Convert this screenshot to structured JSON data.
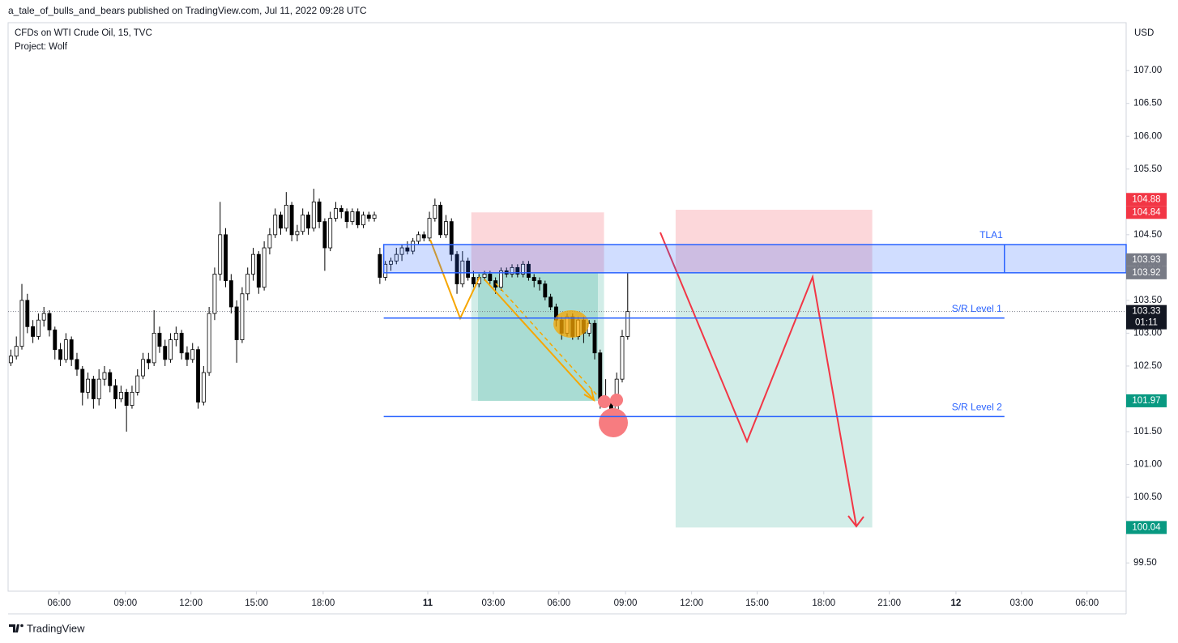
{
  "header": {
    "attribution": "a_tale_of_bulls_and_bears published on TradingView.com, Jul 11, 2022 09:28 UTC",
    "symbol": "CFDs on WTI Crude Oil, 15, TVC",
    "project": "Project: Wolf"
  },
  "footer": {
    "brand": "TradingView"
  },
  "chart_data": {
    "type": "candlestick",
    "currency": "USD",
    "up_color": "#ffffff",
    "down_color": "#000000",
    "ohlc": [
      [
        102.55,
        102.75,
        102.5,
        102.65
      ],
      [
        102.65,
        102.95,
        102.6,
        102.8
      ],
      [
        102.8,
        103.75,
        102.75,
        103.5
      ],
      [
        103.5,
        103.6,
        103.0,
        103.1
      ],
      [
        103.1,
        103.2,
        102.85,
        102.95
      ],
      [
        102.95,
        103.3,
        102.9,
        103.2
      ],
      [
        103.2,
        103.4,
        103.1,
        103.3
      ],
      [
        103.3,
        103.35,
        102.95,
        103.05
      ],
      [
        103.05,
        103.1,
        102.6,
        102.75
      ],
      [
        102.75,
        102.85,
        102.5,
        102.6
      ],
      [
        102.6,
        103.0,
        102.55,
        102.9
      ],
      [
        102.9,
        102.95,
        102.5,
        102.6
      ],
      [
        102.6,
        102.7,
        102.35,
        102.45
      ],
      [
        102.45,
        102.5,
        101.9,
        102.1
      ],
      [
        102.1,
        102.4,
        102.0,
        102.3
      ],
      [
        102.3,
        102.35,
        101.85,
        102.0
      ],
      [
        102.0,
        102.45,
        101.9,
        102.3
      ],
      [
        102.3,
        102.5,
        102.2,
        102.4
      ],
      [
        102.4,
        102.45,
        102.1,
        102.2
      ],
      [
        102.2,
        102.3,
        101.85,
        102.0
      ],
      [
        102.0,
        102.2,
        101.95,
        102.1
      ],
      [
        102.1,
        102.15,
        101.5,
        101.9
      ],
      [
        101.9,
        102.2,
        101.85,
        102.1
      ],
      [
        102.1,
        102.45,
        102.05,
        102.35
      ],
      [
        102.35,
        102.7,
        102.3,
        102.6
      ],
      [
        102.6,
        102.7,
        102.45,
        102.55
      ],
      [
        102.55,
        103.35,
        102.5,
        103.0
      ],
      [
        103.0,
        103.1,
        102.7,
        102.8
      ],
      [
        102.8,
        102.9,
        102.5,
        102.6
      ],
      [
        102.6,
        103.0,
        102.55,
        102.9
      ],
      [
        102.9,
        103.1,
        102.8,
        103.0
      ],
      [
        103.0,
        103.05,
        102.6,
        102.7
      ],
      [
        102.7,
        102.8,
        102.5,
        102.6
      ],
      [
        102.6,
        102.85,
        102.55,
        102.75
      ],
      [
        102.75,
        102.8,
        101.85,
        101.95
      ],
      [
        101.95,
        102.5,
        101.9,
        102.4
      ],
      [
        102.4,
        103.4,
        102.35,
        103.3
      ],
      [
        103.3,
        104.0,
        103.2,
        103.9
      ],
      [
        103.9,
        105.0,
        103.8,
        104.5
      ],
      [
        104.5,
        104.6,
        103.7,
        103.8
      ],
      [
        103.8,
        103.9,
        103.3,
        103.4
      ],
      [
        103.4,
        103.5,
        102.55,
        102.9
      ],
      [
        102.9,
        103.7,
        102.85,
        103.6
      ],
      [
        103.6,
        104.0,
        103.5,
        103.9
      ],
      [
        103.9,
        104.3,
        103.8,
        104.2
      ],
      [
        104.2,
        104.25,
        103.6,
        103.7
      ],
      [
        103.7,
        104.4,
        103.65,
        104.3
      ],
      [
        104.3,
        104.6,
        104.2,
        104.5
      ],
      [
        104.5,
        104.9,
        104.45,
        104.8
      ],
      [
        104.8,
        104.85,
        104.5,
        104.6
      ],
      [
        104.6,
        105.15,
        104.55,
        104.95
      ],
      [
        104.95,
        105.0,
        104.4,
        104.5
      ],
      [
        104.5,
        104.65,
        104.4,
        104.55
      ],
      [
        104.55,
        104.9,
        104.5,
        104.8
      ],
      [
        104.8,
        104.85,
        104.5,
        104.6
      ],
      [
        104.6,
        105.2,
        104.55,
        105.0
      ],
      [
        105.0,
        105.05,
        104.6,
        104.7
      ],
      [
        104.7,
        104.75,
        103.95,
        104.3
      ],
      [
        104.3,
        104.85,
        104.25,
        104.75
      ],
      [
        104.75,
        105.0,
        104.7,
        104.9
      ],
      [
        104.9,
        104.95,
        104.75,
        104.85
      ],
      [
        104.85,
        104.9,
        104.6,
        104.7
      ],
      [
        104.7,
        104.9,
        104.65,
        104.85
      ],
      [
        104.85,
        104.9,
        104.6,
        104.65
      ],
      [
        104.65,
        104.85,
        104.6,
        104.8
      ],
      [
        104.8,
        104.85,
        104.7,
        104.75
      ],
      [
        104.75,
        104.85,
        104.7,
        104.8
      ],
      [
        104.2,
        104.3,
        103.75,
        103.85
      ],
      [
        103.85,
        104.1,
        103.8,
        104.05
      ],
      [
        104.05,
        104.15,
        103.95,
        104.1
      ],
      [
        104.1,
        104.3,
        104.05,
        104.2
      ],
      [
        104.2,
        104.35,
        104.1,
        104.3
      ],
      [
        104.3,
        104.4,
        104.2,
        104.25
      ],
      [
        104.25,
        104.45,
        104.2,
        104.4
      ],
      [
        104.4,
        104.55,
        104.35,
        104.5
      ],
      [
        104.5,
        104.55,
        104.4,
        104.45
      ],
      [
        104.45,
        104.85,
        104.4,
        104.75
      ],
      [
        104.75,
        105.05,
        104.7,
        104.95
      ],
      [
        104.95,
        105.0,
        104.45,
        104.5
      ],
      [
        104.5,
        104.8,
        104.45,
        104.7
      ],
      [
        104.7,
        104.75,
        104.1,
        104.2
      ],
      [
        104.2,
        104.25,
        103.6,
        103.75
      ],
      [
        103.75,
        104.25,
        103.7,
        104.1
      ],
      [
        104.1,
        104.15,
        103.8,
        103.85
      ],
      [
        103.85,
        103.95,
        103.7,
        103.75
      ],
      [
        103.75,
        103.9,
        103.7,
        103.85
      ],
      [
        103.85,
        103.95,
        103.8,
        103.9
      ],
      [
        103.9,
        103.95,
        103.75,
        103.8
      ],
      [
        103.8,
        103.85,
        103.6,
        103.7
      ],
      [
        103.7,
        104.0,
        103.65,
        103.95
      ],
      [
        103.95,
        104.0,
        103.85,
        103.9
      ],
      [
        103.9,
        104.05,
        103.85,
        104.0
      ],
      [
        104.0,
        104.05,
        103.85,
        103.9
      ],
      [
        103.9,
        104.1,
        103.85,
        104.05
      ],
      [
        104.05,
        104.1,
        103.8,
        103.85
      ],
      [
        103.85,
        103.9,
        103.7,
        103.8
      ],
      [
        103.8,
        103.85,
        103.65,
        103.75
      ],
      [
        103.75,
        103.8,
        103.5,
        103.55
      ],
      [
        103.55,
        103.6,
        103.35,
        103.4
      ],
      [
        103.4,
        103.45,
        103.1,
        103.2
      ],
      [
        103.2,
        103.25,
        102.9,
        103.0
      ],
      [
        103.0,
        103.3,
        102.95,
        103.25
      ],
      [
        103.25,
        103.3,
        102.9,
        102.95
      ],
      [
        102.95,
        103.25,
        102.9,
        103.2
      ],
      [
        103.2,
        103.25,
        102.85,
        103.0
      ],
      [
        103.0,
        103.2,
        102.95,
        103.15
      ],
      [
        103.15,
        103.2,
        102.6,
        102.7
      ],
      [
        102.7,
        102.75,
        101.85,
        102.0
      ],
      [
        102.0,
        102.3,
        101.9,
        101.95
      ],
      [
        101.95,
        102.0,
        101.65,
        101.75
      ],
      [
        101.75,
        102.4,
        101.7,
        102.3
      ],
      [
        102.3,
        103.05,
        102.25,
        102.95
      ],
      [
        102.95,
        103.92,
        102.9,
        103.33
      ]
    ],
    "xlim": [
      0,
      203
    ],
    "xticks": [
      {
        "value": 9.26,
        "label": "06:00"
      },
      {
        "value": 21.3,
        "label": "09:00"
      },
      {
        "value": 33.2,
        "label": "12:00"
      },
      {
        "value": 45.1,
        "label": "15:00"
      },
      {
        "value": 57.2,
        "label": "18:00"
      },
      {
        "value": 76.2,
        "label": "11"
      },
      {
        "value": 88.1,
        "label": "03:00"
      },
      {
        "value": 100,
        "label": "06:00"
      },
      {
        "value": 112.1,
        "label": "09:00"
      },
      {
        "value": 124.1,
        "label": "12:00"
      },
      {
        "value": 136,
        "label": "15:00"
      },
      {
        "value": 148.1,
        "label": "18:00"
      },
      {
        "value": 160,
        "label": "21:00"
      },
      {
        "value": 172.1,
        "label": "12"
      },
      {
        "value": 184,
        "label": "03:00"
      },
      {
        "value": 195.9,
        "label": "06:00"
      }
    ],
    "ylim": [
      99.07,
      107.73
    ],
    "yticks": [
      {
        "value": 99.5,
        "label": "99.50"
      },
      {
        "value": 100,
        "label": "100.00"
      },
      {
        "value": 100.5,
        "label": "100.50"
      },
      {
        "value": 101,
        "label": "101.00"
      },
      {
        "value": 101.5,
        "label": "101.50"
      },
      {
        "value": 102,
        "label": "102.00"
      },
      {
        "value": 102.5,
        "label": "102.50"
      },
      {
        "value": 103,
        "label": "103.00"
      },
      {
        "value": 103.5,
        "label": "103.50"
      },
      {
        "value": 104,
        "label": "104.00"
      },
      {
        "value": 104.5,
        "label": "104.50"
      },
      {
        "value": 105,
        "label": "105.00"
      },
      {
        "value": 105.5,
        "label": "105.50"
      },
      {
        "value": 106,
        "label": "106.00"
      },
      {
        "value": 106.5,
        "label": "106.50"
      },
      {
        "value": 107,
        "label": "107.00"
      }
    ],
    "last_price": {
      "value": 103.33,
      "countdown": "01:11"
    },
    "zone": {
      "label": "TLA1",
      "top": 104.35,
      "bottom": 103.92,
      "x": [
        68.2,
        203
      ],
      "divider": 180.9,
      "color": "#2962ff"
    },
    "levels": [
      {
        "label": "S/R Level 1",
        "value": 103.23,
        "x": [
          68.2,
          180.9
        ]
      },
      {
        "label": "S/R Level 2",
        "value": 101.73,
        "x": [
          68.2,
          180.9
        ]
      }
    ],
    "positions": [
      {
        "x": [
          121.2,
          156.9
        ],
        "stop": 104.88,
        "entry": 103.93,
        "target": 100.04
      },
      {
        "x": [
          84.1,
          108.2
        ],
        "stop": 104.84,
        "entry": 103.92,
        "target": 101.97
      }
    ],
    "stop_color": "#f23645",
    "entry_color": "#787b86",
    "target_color": "#089981"
  }
}
